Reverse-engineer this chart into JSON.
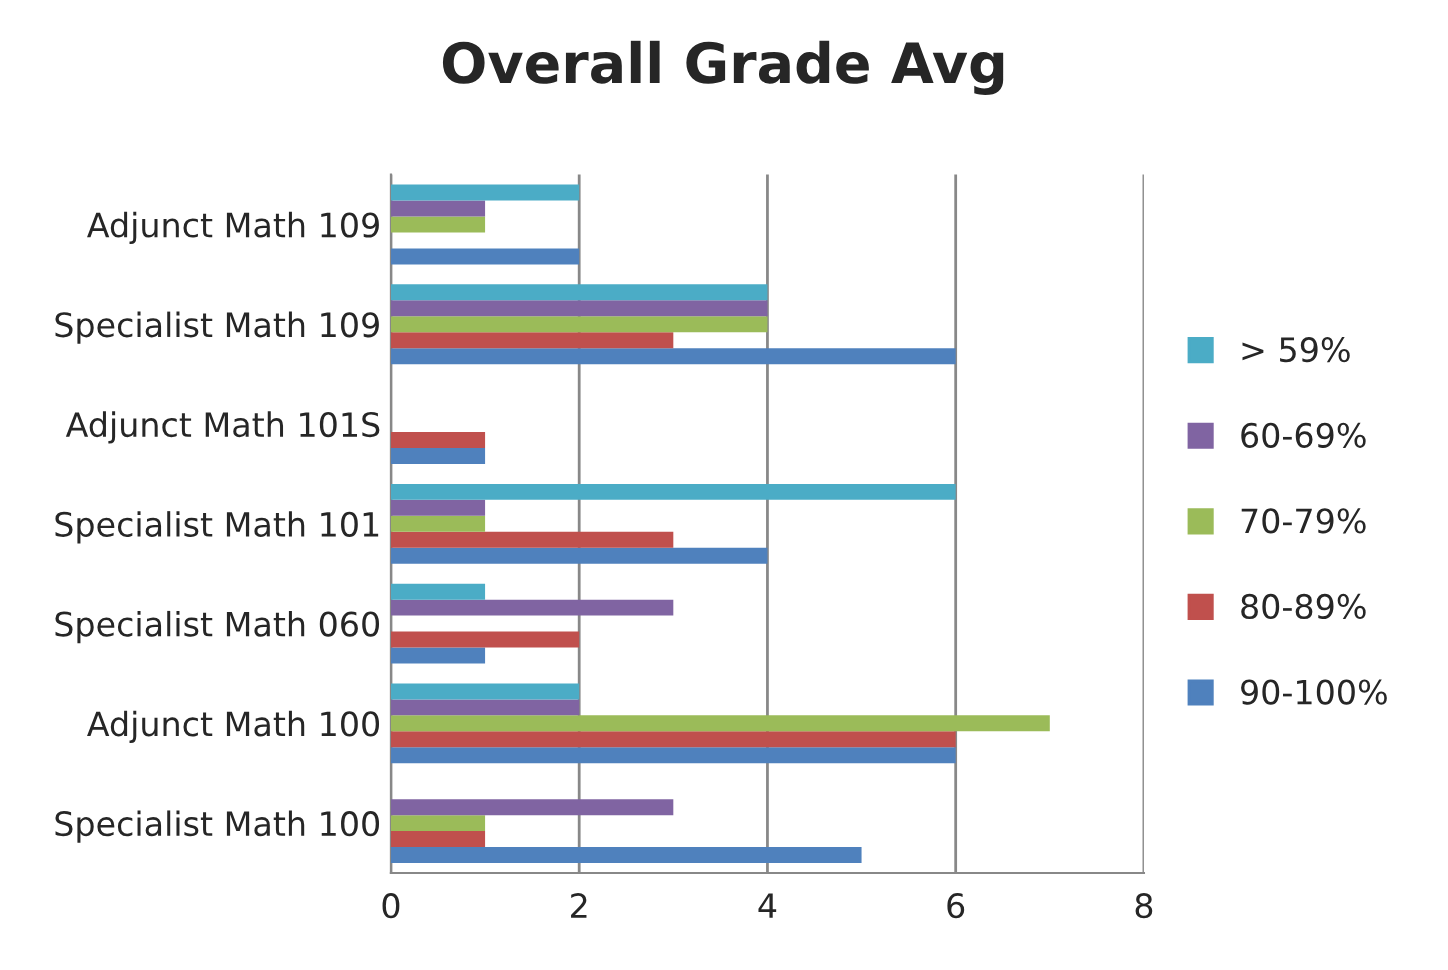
{
  "chart_data": {
    "type": "bar",
    "orientation": "horizontal",
    "title": "Overall Grade Avg",
    "categories": [
      "Adjunct Math 109",
      "Specialist Math 109",
      "Adjunct Math 101S",
      "Specialist Math 101",
      "Specialist Math 060",
      "Adjunct Math 100",
      "Specialist Math 100"
    ],
    "series": [
      {
        "name": "90-100%",
        "color": "#4f81bd",
        "values": [
          2,
          6,
          1,
          4,
          1,
          6,
          5
        ]
      },
      {
        "name": "80-89%",
        "color": "#c0504d",
        "values": [
          0,
          3,
          1,
          3,
          2,
          6,
          1
        ]
      },
      {
        "name": "70-79%",
        "color": "#9bbb59",
        "values": [
          1,
          4,
          0,
          1,
          0,
          7,
          1
        ]
      },
      {
        "name": "60-69%",
        "color": "#8064a2",
        "values": [
          1,
          4,
          0,
          1,
          3,
          2,
          3
        ]
      },
      {
        "name": "> 59%",
        "color": "#4bacc6",
        "values": [
          2,
          4,
          0,
          6,
          1,
          2,
          0
        ]
      }
    ],
    "xlim": [
      0,
      8
    ],
    "xticks": [
      0,
      2,
      4,
      6,
      8
    ],
    "grid": "x",
    "legend": "right"
  }
}
